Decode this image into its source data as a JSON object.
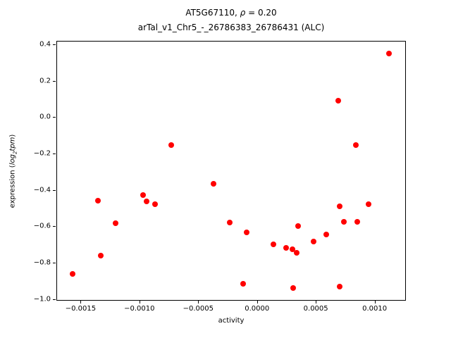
{
  "figure": {
    "title_prefix": "AT5G67110, ",
    "title_rho": "ρ",
    "title_eq": " = 0.20",
    "subtitle": "arTal_v1_Chr5_-_26786383_26786431 (ALC)",
    "xlabel": "activity",
    "ylabel_prefix": "expression (",
    "ylabel_log": "log",
    "ylabel_sub": "2",
    "ylabel_tpm": "tpm",
    "ylabel_close": ")"
  },
  "chart_data": {
    "type": "scatter",
    "title": "AT5G67110, ρ = 0.20",
    "subtitle": "arTal_v1_Chr5_-_26786383_26786431 (ALC)",
    "xlabel": "activity",
    "ylabel": "expression (log2 tpm)",
    "marker_color": "#ff0000",
    "axis_color": "#000000",
    "grid": false,
    "legend": false,
    "xlim": [
      -0.0017,
      0.00126
    ],
    "ylim": [
      -1.005,
      0.415
    ],
    "xticks": [
      -0.0015,
      -0.001,
      -0.0005,
      0.0,
      0.0005,
      0.001
    ],
    "xtick_labels": [
      "−0.0015",
      "−0.0010",
      "−0.0005",
      "0.0000",
      "0.0005",
      "0.0010"
    ],
    "yticks": [
      -1.0,
      -0.8,
      -0.6,
      -0.4,
      -0.2,
      0.0,
      0.2,
      0.4
    ],
    "ytick_labels": [
      "−1.0",
      "−0.8",
      "−0.6",
      "−0.4",
      "−0.2",
      "0.0",
      "0.2",
      "0.4"
    ],
    "points": [
      [
        -0.00157,
        -0.86
      ],
      [
        -0.00135,
        -0.46
      ],
      [
        -0.00133,
        -0.76
      ],
      [
        -0.0012,
        -0.585
      ],
      [
        -0.00097,
        -0.43
      ],
      [
        -0.00094,
        -0.465
      ],
      [
        -0.00087,
        -0.48
      ],
      [
        -0.00073,
        -0.155
      ],
      [
        -0.00037,
        -0.365
      ],
      [
        -0.00023,
        -0.58
      ],
      [
        -0.00012,
        -0.915
      ],
      [
        -9e-05,
        -0.635
      ],
      [
        0.00014,
        -0.7
      ],
      [
        0.00025,
        -0.72
      ],
      [
        0.0003,
        -0.725
      ],
      [
        0.00031,
        -0.94
      ],
      [
        0.00034,
        -0.745
      ],
      [
        0.00035,
        -0.6
      ],
      [
        0.00048,
        -0.685
      ],
      [
        0.00059,
        -0.645
      ],
      [
        0.00069,
        0.09
      ],
      [
        0.0007,
        -0.49
      ],
      [
        0.0007,
        -0.93
      ],
      [
        0.00074,
        -0.575
      ],
      [
        0.00084,
        -0.155
      ],
      [
        0.00085,
        -0.575
      ],
      [
        0.00095,
        -0.48
      ],
      [
        0.00112,
        0.35
      ]
    ]
  }
}
